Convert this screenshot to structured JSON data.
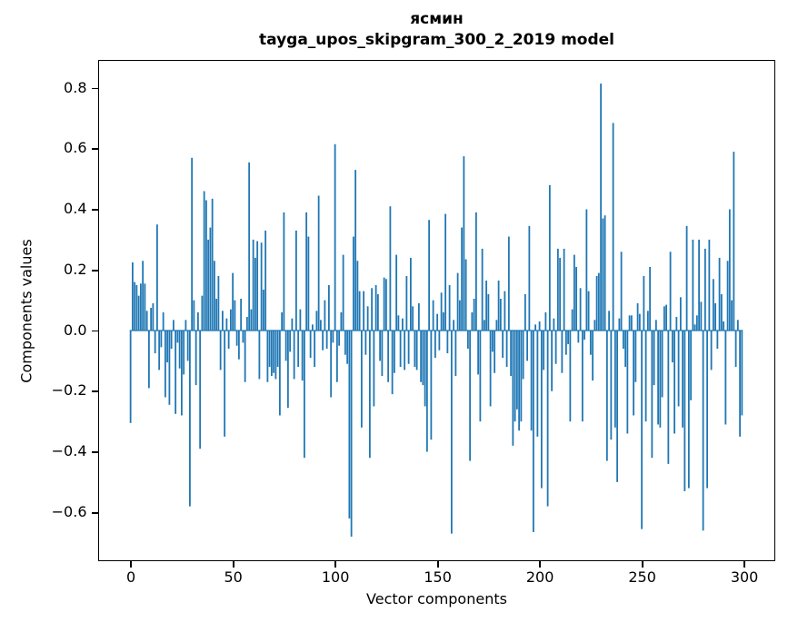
{
  "title": {
    "line1": "ясмин",
    "line2": "tayga_upos_skipgram_300_2_2019 model"
  },
  "axes": {
    "xlabel": "Vector components",
    "ylabel": "Components values",
    "x_tick_labels": [
      "0",
      "50",
      "100",
      "150",
      "200",
      "250",
      "300"
    ],
    "y_tick_labels": [
      "0.8",
      "0.6",
      "0.4",
      "0.2",
      "0.0",
      "−0.2",
      "−0.4",
      "−0.6"
    ]
  },
  "colors": {
    "bar": "#1f77b4",
    "background": "#ffffff",
    "text": "#000000",
    "spine": "#000000"
  },
  "chart_data": {
    "type": "bar",
    "title": "ясмин — tayga_upos_skipgram_300_2_2019 model",
    "xlabel": "Vector components",
    "ylabel": "Components values",
    "n_components": 300,
    "bar_width": 0.8,
    "bar_color": "#1f77b4",
    "xlim": [
      -15.4,
      314.4
    ],
    "ylim": [
      -0.755,
      0.89
    ],
    "x_ticks": [
      0,
      50,
      100,
      150,
      200,
      250,
      300
    ],
    "y_ticks": [
      0.8,
      0.6,
      0.4,
      0.2,
      0.0,
      -0.2,
      -0.4,
      -0.6
    ],
    "grid": false,
    "legend": null,
    "values": [
      -0.305,
      0.225,
      0.16,
      0.15,
      0.115,
      0.155,
      0.23,
      0.155,
      0.065,
      -0.19,
      0.075,
      0.09,
      -0.075,
      0.35,
      -0.13,
      -0.055,
      0.06,
      -0.22,
      -0.105,
      -0.245,
      -0.06,
      0.035,
      -0.275,
      -0.04,
      -0.125,
      -0.28,
      -0.145,
      0.035,
      -0.1,
      -0.58,
      0.57,
      0.1,
      -0.18,
      0.06,
      -0.39,
      0.115,
      0.46,
      0.43,
      0.3,
      0.34,
      0.435,
      0.23,
      0.105,
      0.18,
      -0.13,
      0.065,
      -0.35,
      0.04,
      -0.06,
      0.07,
      0.19,
      0.1,
      -0.05,
      -0.095,
      0.105,
      -0.04,
      -0.17,
      0.045,
      0.555,
      0.07,
      0.3,
      0.24,
      0.295,
      -0.16,
      0.29,
      0.135,
      0.33,
      -0.17,
      -0.12,
      -0.15,
      -0.14,
      -0.16,
      -0.12,
      -0.28,
      0.06,
      0.39,
      -0.1,
      -0.255,
      -0.07,
      0.04,
      -0.16,
      0.33,
      -0.12,
      0.07,
      -0.165,
      -0.42,
      0.39,
      0.31,
      -0.09,
      0.02,
      -0.12,
      0.065,
      0.445,
      0.035,
      -0.065,
      0.1,
      -0.06,
      0.15,
      -0.22,
      -0.04,
      0.615,
      -0.17,
      -0.05,
      0.06,
      0.25,
      -0.08,
      -0.11,
      -0.62,
      -0.68,
      0.31,
      0.53,
      0.23,
      0.13,
      -0.32,
      0.13,
      -0.08,
      0.08,
      -0.42,
      0.14,
      -0.25,
      0.15,
      0.12,
      -0.1,
      -0.15,
      0.175,
      0.17,
      -0.17,
      0.41,
      -0.21,
      -0.14,
      0.25,
      0.05,
      -0.12,
      0.04,
      -0.13,
      0.18,
      -0.11,
      0.24,
      0.08,
      -0.12,
      -0.13,
      0.09,
      -0.17,
      -0.18,
      -0.25,
      -0.4,
      0.365,
      -0.36,
      0.1,
      -0.09,
      0.055,
      -0.065,
      0.125,
      0.06,
      0.385,
      -0.075,
      0.15,
      -0.67,
      0.035,
      -0.15,
      0.19,
      0.1,
      0.34,
      0.575,
      0.235,
      -0.06,
      -0.43,
      0.06,
      0.105,
      0.39,
      -0.145,
      -0.3,
      0.27,
      0.035,
      0.165,
      0.12,
      -0.25,
      -0.07,
      -0.14,
      0.035,
      0.165,
      0.105,
      -0.09,
      0.13,
      -0.12,
      0.31,
      -0.15,
      -0.38,
      -0.3,
      -0.26,
      -0.33,
      -0.3,
      -0.16,
      0.12,
      -0.1,
      0.345,
      -0.33,
      -0.665,
      0.02,
      -0.35,
      0.03,
      -0.52,
      -0.13,
      0.06,
      -0.58,
      0.48,
      -0.2,
      0.04,
      -0.11,
      0.27,
      0.24,
      -0.14,
      0.27,
      -0.08,
      -0.045,
      -0.3,
      0.07,
      0.25,
      0.21,
      -0.04,
      0.14,
      -0.3,
      -0.03,
      0.4,
      0.13,
      -0.08,
      -0.165,
      0.035,
      0.18,
      0.19,
      0.815,
      0.37,
      0.38,
      -0.43,
      0.065,
      -0.36,
      0.685,
      -0.32,
      -0.5,
      0.04,
      0.26,
      -0.06,
      -0.12,
      -0.34,
      0.05,
      0.05,
      -0.28,
      -0.17,
      0.09,
      0.055,
      -0.655,
      0.18,
      -0.3,
      0.065,
      0.21,
      -0.42,
      -0.18,
      0.035,
      -0.31,
      -0.32,
      -0.22,
      0.08,
      0.085,
      -0.44,
      0.26,
      -0.105,
      -0.34,
      0.045,
      -0.25,
      0.11,
      -0.32,
      -0.53,
      0.345,
      -0.52,
      -0.23,
      0.3,
      0.02,
      0.05,
      0.3,
      0.095,
      -0.66,
      0.27,
      -0.52,
      0.3,
      -0.13,
      0.17,
      0.09,
      -0.06,
      0.24,
      0.12,
      0.03,
      -0.31,
      0.23,
      0.4,
      0.1,
      0.59,
      -0.12,
      0.035,
      -0.35,
      -0.28
    ]
  }
}
